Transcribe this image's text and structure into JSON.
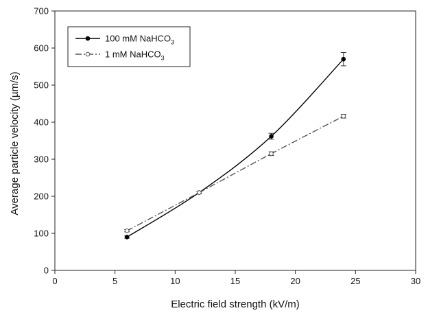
{
  "chart_data": {
    "type": "line",
    "xlabel": "Electric field strength (kV/m)",
    "ylabel": "Average particle velocity (µm/s)",
    "xlim": [
      0,
      30
    ],
    "ylim": [
      0,
      700
    ],
    "x_ticks": [
      "0",
      "5",
      "10",
      "15",
      "20",
      "25",
      "30"
    ],
    "y_ticks": [
      "0",
      "100",
      "200",
      "300",
      "400",
      "500",
      "600",
      "700"
    ],
    "grid": false,
    "legend_position": "top-left",
    "series": [
      {
        "name": "100 mM NaHCO3",
        "legend_main": "100 mM NaHCO",
        "legend_sub": "3",
        "color": "#000000",
        "marker": "filled-circle",
        "line_style": "solid",
        "x": [
          6,
          12,
          18,
          24
        ],
        "y": [
          90,
          210,
          362,
          570
        ],
        "error": [
          3,
          3,
          8,
          18
        ]
      },
      {
        "name": "1 mM NaHCO3",
        "legend_main": "1 mM NaHCO",
        "legend_sub": "3",
        "color": "#555555",
        "marker": "open-circle",
        "line_style": "dash-dot",
        "x": [
          6,
          12,
          18,
          24
        ],
        "y": [
          107,
          210,
          315,
          416
        ],
        "error": [
          3,
          3,
          5,
          5
        ]
      }
    ]
  }
}
